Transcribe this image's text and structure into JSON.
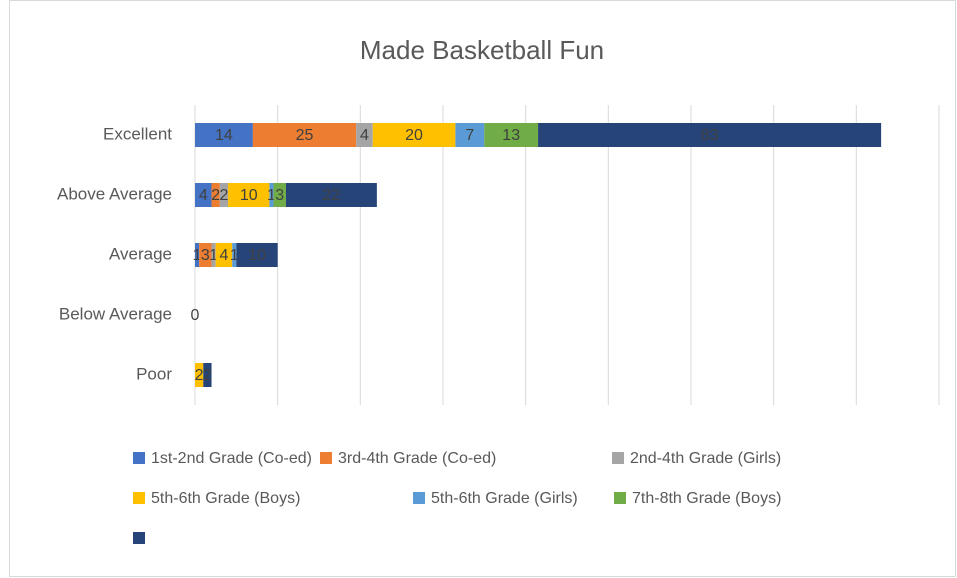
{
  "chart_data": {
    "type": "stacked_barh",
    "title": "Made Basketball Fun",
    "categories": [
      "Excellent",
      "Above Average",
      "Average",
      "Below Average",
      "Poor"
    ],
    "xlim": [
      0,
      180
    ],
    "xticks": [
      0,
      20,
      40,
      60,
      80,
      100,
      120,
      140,
      160,
      180
    ],
    "grid": true,
    "series": [
      {
        "name": "1st-2nd Grade (Co-ed)",
        "color": "#4472c4",
        "values": [
          14,
          4,
          1,
          0,
          null
        ]
      },
      {
        "name": "3rd-4th Grade (Co-ed)",
        "color": "#ed7d31",
        "values": [
          25,
          2,
          3,
          null,
          null
        ]
      },
      {
        "name": "2nd-4th Grade (Girls)",
        "color": "#a5a5a5",
        "values": [
          4,
          2,
          1,
          null,
          null
        ]
      },
      {
        "name": "5th-6th Grade (Boys)",
        "color": "#ffc000",
        "values": [
          20,
          10,
          4,
          null,
          2
        ]
      },
      {
        "name": "5th-6th Grade (Girls)",
        "color": "#5b9bd5",
        "values": [
          7,
          1,
          1,
          null,
          null
        ]
      },
      {
        "name": "7th-8th Grade (Boys)",
        "color": "#70ad47",
        "values": [
          13,
          3,
          null,
          null,
          null
        ]
      },
      {
        "color": "#264478",
        "values": [
          83,
          22,
          10,
          null,
          2
        ]
      }
    ]
  }
}
